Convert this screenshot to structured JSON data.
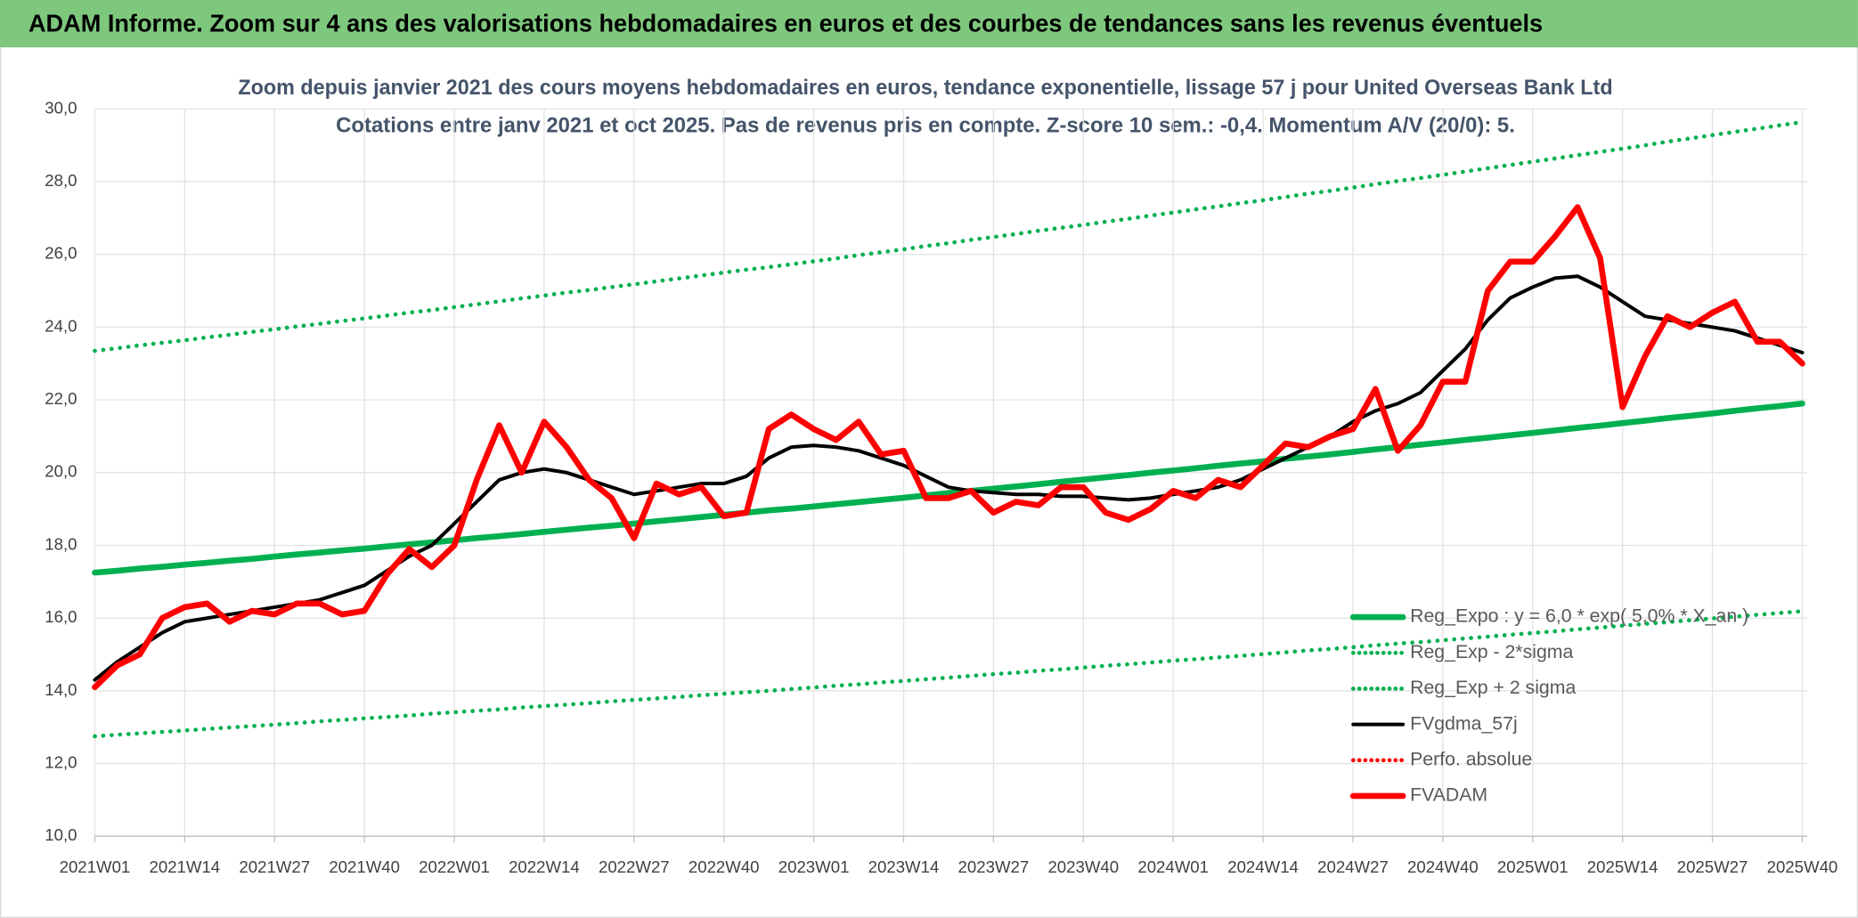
{
  "header": {
    "title": "ADAM Informe. Zoom sur 4 ans des valorisations hebdomadaires en euros et des courbes de tendances sans les revenus éventuels"
  },
  "chart_data": {
    "type": "line",
    "title": "Zoom depuis janvier 2021 des cours moyens hebdomadaires en euros, tendance exponentielle, lissage 57 j pour United Overseas Bank Ltd",
    "subtitle": "Cotations entre janv 2021 et oct 2025. Pas de revenus pris en compte. Z-score 10 sem.: -0,4. Momentum A/V (20/0): 5.",
    "categories": [
      "2021W01",
      null,
      null,
      null,
      "2021W14",
      null,
      null,
      null,
      "2021W27",
      null,
      null,
      null,
      "2021W40",
      null,
      null,
      null,
      "2022W01",
      null,
      null,
      null,
      "2022W14",
      null,
      null,
      null,
      "2022W27",
      null,
      null,
      null,
      "2022W40",
      null,
      null,
      null,
      "2023W01",
      null,
      null,
      null,
      "2023W14",
      null,
      null,
      null,
      "2023W27",
      null,
      null,
      null,
      "2023W40",
      null,
      null,
      null,
      "2024W01",
      null,
      null,
      null,
      "2024W14",
      null,
      null,
      null,
      "2024W27",
      null,
      null,
      null,
      "2024W40",
      null,
      null,
      null,
      "2025W01",
      null,
      null,
      null,
      "2025W14",
      null,
      null,
      null,
      "2025W27",
      null,
      null,
      null,
      "2025W40"
    ],
    "ylim": [
      10,
      30
    ],
    "yticks": [
      {
        "value": 10,
        "label": "10,0"
      },
      {
        "value": 12,
        "label": "12,0"
      },
      {
        "value": 14,
        "label": "14,0"
      },
      {
        "value": 16,
        "label": "16,0"
      },
      {
        "value": 18,
        "label": "18,0"
      },
      {
        "value": 20,
        "label": "20,0"
      },
      {
        "value": 22,
        "label": "22,0"
      },
      {
        "value": 24,
        "label": "24,0"
      },
      {
        "value": 26,
        "label": "26,0"
      },
      {
        "value": 28,
        "label": "28,0"
      },
      {
        "value": 30,
        "label": "30,0"
      }
    ],
    "grid": true,
    "legend": "bottom-right",
    "series": [
      {
        "name": "Reg_Expo : y = 6,0 * exp( 5,0% * X_an )",
        "color": "#00b050",
        "style": "solid",
        "values": [
          17.25,
          17.3,
          17.36,
          17.41,
          17.47,
          17.52,
          17.58,
          17.63,
          17.69,
          17.75,
          17.8,
          17.86,
          17.91,
          17.97,
          18.03,
          18.08,
          18.14,
          18.2,
          18.25,
          18.31,
          18.37,
          18.43,
          18.49,
          18.54,
          18.6,
          18.66,
          18.72,
          18.78,
          18.84,
          18.9,
          18.96,
          19.01,
          19.07,
          19.13,
          19.19,
          19.25,
          19.31,
          19.37,
          19.44,
          19.5,
          19.56,
          19.62,
          19.68,
          19.75,
          19.81,
          19.87,
          19.93,
          20.0,
          20.06,
          20.12,
          20.19,
          20.25,
          20.31,
          20.38,
          20.44,
          20.5,
          20.57,
          20.64,
          20.7,
          20.77,
          20.83,
          20.9,
          20.96,
          21.03,
          21.09,
          21.16,
          21.23,
          21.29,
          21.36,
          21.43,
          21.5,
          21.56,
          21.63,
          21.7,
          21.77,
          21.83,
          21.9
        ]
      },
      {
        "name": "Reg_Exp - 2*sigma",
        "color": "#00b050",
        "style": "dotted",
        "values": [
          12.75,
          12.79,
          12.83,
          12.87,
          12.91,
          12.95,
          12.99,
          13.03,
          13.07,
          13.11,
          13.16,
          13.2,
          13.24,
          13.28,
          13.32,
          13.37,
          13.41,
          13.45,
          13.49,
          13.54,
          13.58,
          13.62,
          13.66,
          13.71,
          13.75,
          13.79,
          13.83,
          13.88,
          13.92,
          13.96,
          14.0,
          14.05,
          14.09,
          14.14,
          14.18,
          14.23,
          14.27,
          14.32,
          14.36,
          14.41,
          14.46,
          14.5,
          14.55,
          14.59,
          14.64,
          14.69,
          14.73,
          14.78,
          14.83,
          14.87,
          14.92,
          14.96,
          15.01,
          15.06,
          15.11,
          15.15,
          15.2,
          15.25,
          15.3,
          15.34,
          15.39,
          15.44,
          15.49,
          15.54,
          15.59,
          15.64,
          15.69,
          15.74,
          15.79,
          15.84,
          15.89,
          15.94,
          15.99,
          16.04,
          16.09,
          16.14,
          16.19
        ]
      },
      {
        "name": "Reg_Exp + 2 sigma",
        "color": "#00b050",
        "style": "dotted",
        "values": [
          23.35,
          23.42,
          23.5,
          23.57,
          23.64,
          23.72,
          23.79,
          23.87,
          23.94,
          24.02,
          24.09,
          24.17,
          24.24,
          24.32,
          24.4,
          24.47,
          24.55,
          24.63,
          24.71,
          24.79,
          24.87,
          24.95,
          25.02,
          25.1,
          25.18,
          25.26,
          25.34,
          25.42,
          25.5,
          25.58,
          25.65,
          25.73,
          25.81,
          25.89,
          25.98,
          26.06,
          26.14,
          26.23,
          26.31,
          26.4,
          26.48,
          26.56,
          26.65,
          26.73,
          26.81,
          26.9,
          26.98,
          27.07,
          27.15,
          27.24,
          27.32,
          27.41,
          27.49,
          27.58,
          27.67,
          27.75,
          27.84,
          27.93,
          28.02,
          28.1,
          28.19,
          28.28,
          28.37,
          28.46,
          28.55,
          28.64,
          28.73,
          28.82,
          28.91,
          29.0,
          29.1,
          29.19,
          29.28,
          29.37,
          29.46,
          29.55,
          29.64
        ]
      },
      {
        "name": "FVgdma_57j",
        "color": "#000000",
        "style": "solid",
        "values": [
          14.3,
          14.8,
          15.2,
          15.6,
          15.9,
          16.0,
          16.1,
          16.2,
          16.3,
          16.4,
          16.5,
          16.7,
          16.9,
          17.3,
          17.7,
          18.0,
          18.6,
          19.2,
          19.8,
          20.0,
          20.1,
          20.0,
          19.8,
          19.6,
          19.4,
          19.5,
          19.6,
          19.7,
          19.7,
          19.9,
          20.4,
          20.7,
          20.75,
          20.7,
          20.6,
          20.4,
          20.2,
          19.9,
          19.6,
          19.5,
          19.45,
          19.4,
          19.4,
          19.35,
          19.35,
          19.3,
          19.25,
          19.3,
          19.4,
          19.5,
          19.6,
          19.8,
          20.1,
          20.4,
          20.7,
          21.0,
          21.4,
          21.7,
          21.9,
          22.2,
          22.8,
          23.4,
          24.2,
          24.8,
          25.1,
          25.35,
          25.4,
          25.1,
          24.7,
          24.3,
          24.2,
          24.1,
          24.0,
          23.9,
          23.7,
          23.5,
          23.3
        ]
      },
      {
        "name": "Perfo. absolue",
        "color": "#ff0000",
        "style": "dotted",
        "values": [
          null,
          null,
          null,
          null,
          null,
          null,
          null,
          null,
          null,
          null,
          null,
          null,
          null,
          null,
          null,
          null,
          null,
          null,
          null,
          null,
          null,
          null,
          null,
          null,
          null,
          null,
          null,
          null,
          null,
          null,
          null,
          null,
          null,
          null,
          null,
          null,
          null,
          null,
          null,
          null,
          null,
          null,
          null,
          null,
          null,
          null,
          null,
          null,
          null,
          null,
          null,
          null,
          null,
          null,
          null,
          null,
          null,
          null,
          null,
          null,
          null,
          null,
          null,
          null,
          null,
          null,
          null,
          null,
          null,
          null,
          null,
          null,
          null,
          null,
          null,
          null,
          null
        ]
      },
      {
        "name": "FVADAM",
        "color": "#ff0000",
        "style": "solid",
        "values": [
          14.1,
          14.7,
          15.0,
          16.0,
          16.3,
          16.4,
          15.9,
          16.2,
          16.1,
          16.4,
          16.4,
          16.1,
          16.2,
          17.2,
          17.9,
          17.4,
          18.0,
          19.8,
          21.3,
          20.0,
          21.4,
          20.7,
          19.8,
          19.3,
          18.2,
          19.7,
          19.4,
          19.6,
          18.8,
          18.9,
          21.2,
          21.6,
          21.2,
          20.9,
          21.4,
          20.5,
          20.6,
          19.3,
          19.3,
          19.5,
          18.9,
          19.2,
          19.1,
          19.6,
          19.6,
          18.9,
          18.7,
          19.0,
          19.5,
          19.3,
          19.8,
          19.6,
          20.2,
          20.8,
          20.7,
          21.0,
          21.2,
          22.3,
          20.6,
          21.3,
          22.5,
          22.5,
          25.0,
          25.8,
          25.8,
          26.5,
          27.3,
          25.9,
          21.8,
          23.2,
          24.3,
          24.0,
          24.4,
          24.7,
          23.6,
          23.6,
          23.0
        ]
      }
    ]
  }
}
